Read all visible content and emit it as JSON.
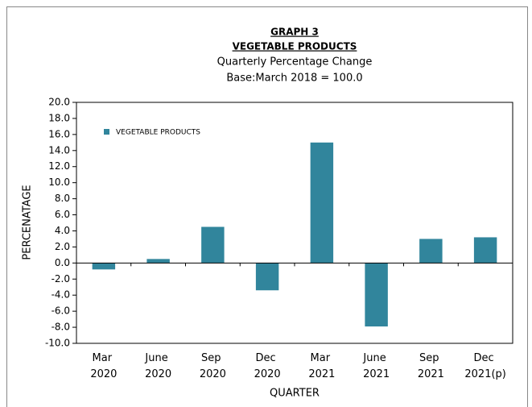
{
  "chart_data": {
    "type": "bar",
    "title": "GRAPH 3",
    "subtitle_lines": [
      "VEGETABLE PRODUCTS",
      "Quarterly Percentage Change",
      "Base:March 2018 = 100.0"
    ],
    "x_label": "QUARTER",
    "y_label": "PERCENATAGE",
    "categories": [
      "Mar\n2020",
      "June\n2020",
      "Sep\n2020",
      "Dec\n2020",
      "Mar\n2021",
      "June\n2021",
      "Sep\n2021",
      "Dec\n2021(p)"
    ],
    "series": [
      {
        "name": "VEGETABLE PRODUCTS",
        "color": "#31859c",
        "values": [
          -0.8,
          0.5,
          4.5,
          -3.4,
          15.0,
          -7.9,
          3.0,
          3.2
        ]
      }
    ],
    "ylim": [
      -10,
      20
    ],
    "yticks": [
      {
        "value": -10,
        "label": "-10.0"
      },
      {
        "value": -8,
        "label": "-8.0"
      },
      {
        "value": -6,
        "label": "-6.0"
      },
      {
        "value": -4,
        "label": "-4.0"
      },
      {
        "value": -2,
        "label": "-2.0"
      },
      {
        "value": 0,
        "label": "0.0"
      },
      {
        "value": 2,
        "label": "2.0"
      },
      {
        "value": 4,
        "label": "4.0"
      },
      {
        "value": 6,
        "label": "6.0"
      },
      {
        "value": 8,
        "label": "8.0"
      },
      {
        "value": 10,
        "label": "10.0"
      },
      {
        "value": 12,
        "label": "12.0"
      },
      {
        "value": 14,
        "label": "14.0"
      },
      {
        "value": 16,
        "label": "16.0"
      },
      {
        "value": 18,
        "label": "18.0"
      },
      {
        "value": 20,
        "label": "20.0"
      }
    ],
    "legend": "top-left",
    "grid": false
  }
}
